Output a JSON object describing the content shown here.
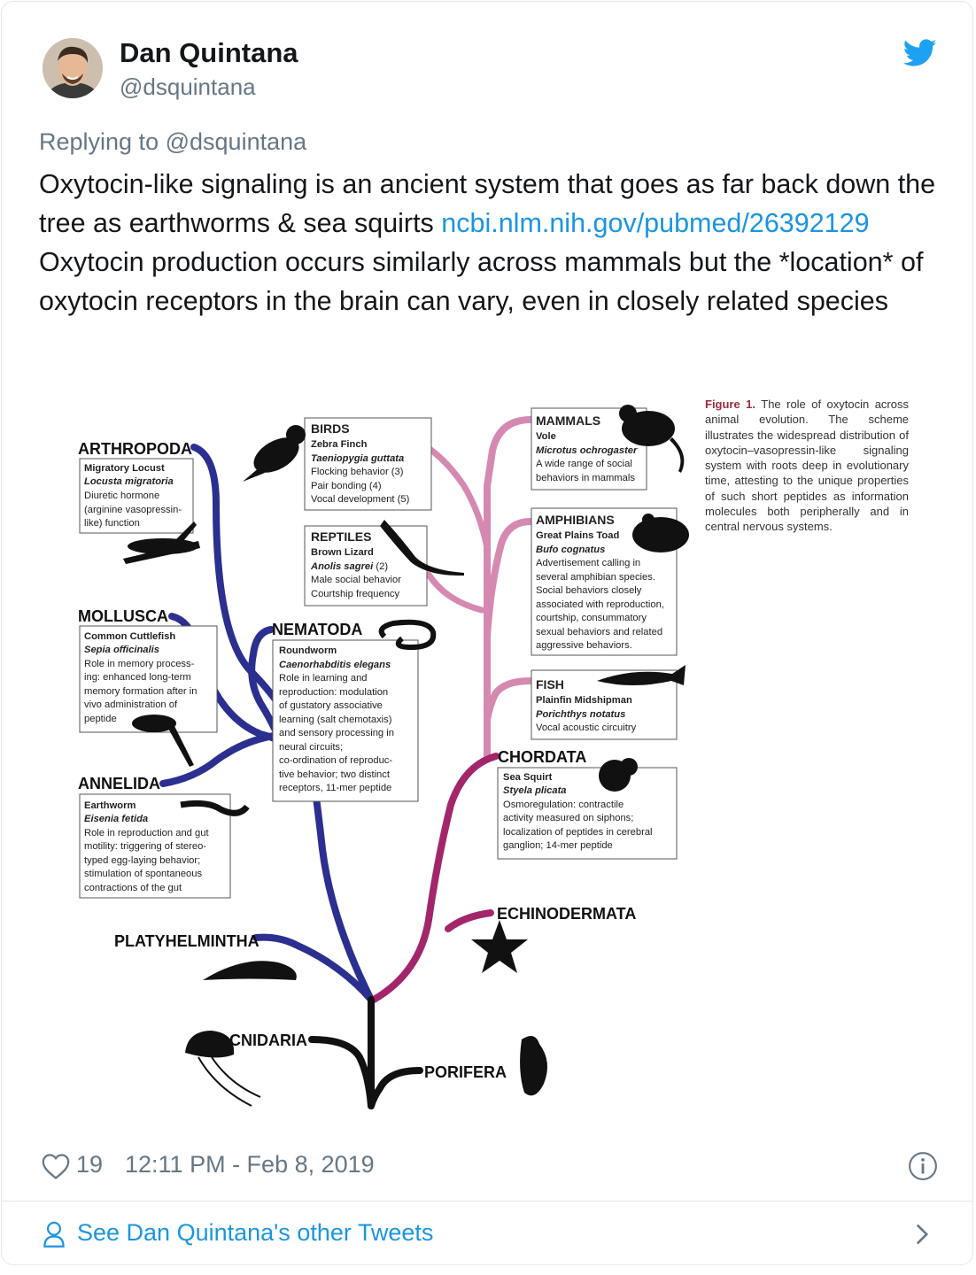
{
  "author": {
    "name": "Dan Quintana",
    "handle": "@dsquintana"
  },
  "reply": {
    "prefix": "Replying to",
    "to": "@dsquintana"
  },
  "tweet": {
    "part1": "Oxytocin-like signaling is an ancient system that goes as far back down the tree as earthworms & sea squirts ",
    "link": "ncbi.nlm.nih.gov/pubmed/26392129",
    "part2": " Oxytocin production occurs similarly across mammals but the *location* of oxytocin receptors in the brain can vary, even in closely related species"
  },
  "figure": {
    "caption_label": "Figure 1.",
    "caption_text": " The role of oxytocin across animal evolution. The scheme illustrates the widespread distribution of oxytocin–vasopressin-like signaling system with roots deep in evolutionary time, attesting to the unique properties of such short peptides as information molecules both peripherally and in central nervous systems.",
    "phyla": {
      "arthropoda": "ARTHROPODA",
      "mollusca": "MOLLUSCA",
      "annelida": "ANNELIDA",
      "platyhelmintha": "PLATYHELMINTHA",
      "cnidaria": "CNIDARIA",
      "porifera": "PORIFERA",
      "nematoda": "NEMATODA",
      "echinodermata": "ECHINODERMATA",
      "chordata": "CHORDATA"
    },
    "boxes": {
      "arthropoda": [
        "Migratory Locust",
        "Locusta migratoria",
        "Diuretic hormone",
        "(arginine vasopressin-",
        "like) function"
      ],
      "mollusca": [
        "Common Cuttlefish",
        "Sepia officinalis",
        "Role in memory process-",
        "ing: enhanced long-term",
        "memory formation after in",
        "vivo administration of",
        "peptide"
      ],
      "annelida": [
        "Earthworm",
        "Eisenia fetida",
        "Role in reproduction and gut",
        "motility: triggering of stereo-",
        "typed egg-laying behavior;",
        "stimulation of spontaneous",
        "contractions of the gut"
      ],
      "birds": [
        "BIRDS",
        "Zebra Finch",
        "Taeniopygia guttata",
        "Flocking behavior (3)",
        "Pair bonding (4)",
        "Vocal development (5)"
      ],
      "reptiles": [
        "REPTILES",
        "Brown Lizard",
        "Anolis sagrei",
        " (2)",
        "Male social behavior",
        "Courtship frequency"
      ],
      "nematoda": [
        "Roundworm",
        "Caenorhabditis elegans",
        "Role in learning and",
        "reproduction: modulation",
        "of gustatory associative",
        "learning (salt chemotaxis)",
        "and sensory processing in",
        "neural circuits;",
        "co-ordination of reproduc-",
        "tive behavior; two distinct",
        "receptors, 11-mer peptide"
      ],
      "mammals": [
        "MAMMALS",
        "Vole",
        "Microtus ochrogaster",
        "A wide range of social",
        "behaviors in mammals"
      ],
      "amphibians": [
        "AMPHIBIANS",
        "Great Plains Toad",
        "Bufo cognatus",
        "Advertisement calling in",
        "several amphibian species.",
        "Social behaviors closely",
        "associated with reproduction,",
        "courtship, consummatory",
        "sexual behaviors and related",
        "aggressive behaviors."
      ],
      "fish": [
        "FISH",
        "Plainfin Midshipman",
        "Porichthys notatus",
        "Vocal acoustic circuitry"
      ],
      "chordata": [
        "Sea Squirt",
        "Styela plicata",
        "Osmoregulation: contractile",
        "activity measured on siphons;",
        "localization of peptides in cerebral",
        "ganglion; 14-mer peptide"
      ]
    }
  },
  "meta": {
    "likes": "19",
    "timestamp": "12:11 PM - Feb 8, 2019"
  },
  "footer": {
    "see_more": "See Dan Quintana's other Tweets"
  },
  "colors": {
    "blue_branch": "#2b2f8f",
    "pink_branch": "#d589b1",
    "magenta_branch": "#a3266b",
    "link": "#1b95e0",
    "muted": "#657786"
  },
  "icons": [
    "twitter-bird-icon",
    "heart-icon",
    "info-icon",
    "person-icon",
    "chevron-right-icon"
  ]
}
